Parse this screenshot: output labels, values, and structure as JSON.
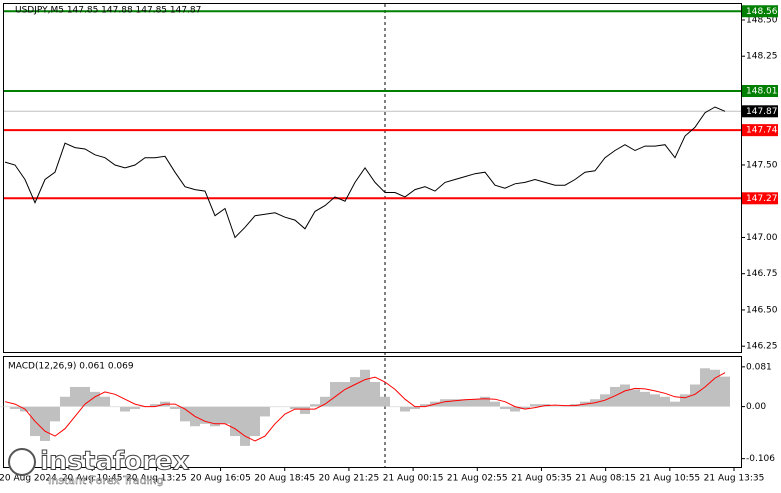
{
  "chart_data": [
    {
      "type": "line",
      "title": "USDJPY,M5  147.85 147.88 147.85 147.87",
      "color": "#000000",
      "values": [
        147.52,
        147.5,
        147.4,
        147.24,
        147.4,
        147.45,
        147.65,
        147.62,
        147.61,
        147.57,
        147.55,
        147.5,
        147.48,
        147.5,
        147.55,
        147.55,
        147.56,
        147.45,
        147.35,
        147.33,
        147.32,
        147.15,
        147.2,
        147.0,
        147.07,
        147.15,
        147.16,
        147.17,
        147.14,
        147.12,
        147.06,
        147.18,
        147.22,
        147.28,
        147.25,
        147.38,
        147.48,
        147.38,
        147.31,
        147.31,
        147.28,
        147.33,
        147.35,
        147.32,
        147.38,
        147.4,
        147.42,
        147.44,
        147.45,
        147.36,
        147.34,
        147.37,
        147.38,
        147.4,
        147.38,
        147.36,
        147.36,
        147.4,
        147.45,
        147.46,
        147.55,
        147.6,
        147.64,
        147.6,
        147.63,
        147.63,
        147.64,
        147.55,
        147.7,
        147.76,
        147.86,
        147.9,
        147.87
      ],
      "ylim": [
        146.21,
        148.61
      ],
      "yticks": [
        {
          "value": 148.5,
          "label": "148.50"
        },
        148.25,
        {
          "value": 148.0,
          "label": "148.00"
        },
        147.75,
        {
          "value": 147.5,
          "label": "147.50"
        },
        147.25,
        {
          "value": 147.0,
          "label": "147.00"
        },
        146.75,
        {
          "value": 146.5,
          "label": "146.50"
        },
        146.25
      ],
      "levels": [
        {
          "value": 148.56,
          "color": "#008000"
        },
        {
          "value": 148.01,
          "color": "#008000"
        },
        {
          "value": 147.74,
          "color": "#ff0000"
        },
        {
          "value": 147.27,
          "color": "#ff0000"
        }
      ],
      "last_price": 147.87,
      "xtick_labels": [
        "20 Aug 2024",
        "20 Aug 10:45",
        "20 Aug 13:25",
        "20 Aug 16:05",
        "20 Aug 18:45",
        "20 Aug 21:25",
        "21 Aug 00:15",
        "21 Aug 02:55",
        "21 Aug 05:35",
        "21 Aug 08:15",
        "21 Aug 10:55",
        "21 Aug 13:35"
      ],
      "watermark": {
        "brand": "instaforex",
        "tagline": "Instant Forex Trading"
      }
    },
    {
      "type": "macd",
      "title": "MACD(12,26,9) 0.061 0.069",
      "hist_color": "#c0c0c0",
      "signal_color": "#ff0000",
      "histogram": [
        0.0,
        -0.005,
        -0.01,
        -0.06,
        -0.07,
        -0.03,
        0.02,
        0.04,
        0.04,
        0.03,
        0.02,
        0.0,
        -0.01,
        -0.005,
        0.0,
        0.005,
        0.01,
        -0.005,
        -0.03,
        -0.04,
        -0.035,
        -0.04,
        -0.035,
        -0.06,
        -0.08,
        -0.06,
        -0.02,
        0.0,
        0.0,
        -0.005,
        -0.015,
        0.005,
        0.02,
        0.05,
        0.05,
        0.06,
        0.075,
        0.05,
        0.02,
        0.0,
        -0.01,
        -0.005,
        0.005,
        0.01,
        0.015,
        0.015,
        0.015,
        0.015,
        0.02,
        0.01,
        -0.005,
        -0.01,
        -0.005,
        0.005,
        0.005,
        0.0,
        0.0,
        0.005,
        0.01,
        0.015,
        0.025,
        0.04,
        0.045,
        0.035,
        0.03,
        0.025,
        0.02,
        0.01,
        0.025,
        0.045,
        0.078,
        0.075,
        0.061
      ],
      "signal": [
        0.01,
        0.005,
        -0.005,
        -0.03,
        -0.05,
        -0.06,
        -0.045,
        -0.02,
        0.005,
        0.02,
        0.03,
        0.025,
        0.015,
        0.005,
        0.0,
        0.0,
        0.005,
        0.005,
        -0.005,
        -0.02,
        -0.03,
        -0.035,
        -0.035,
        -0.045,
        -0.06,
        -0.07,
        -0.06,
        -0.035,
        -0.015,
        -0.005,
        -0.005,
        -0.005,
        0.005,
        0.02,
        0.035,
        0.045,
        0.055,
        0.06,
        0.05,
        0.035,
        0.015,
        0.0,
        0.0,
        0.005,
        0.01,
        0.012,
        0.014,
        0.015,
        0.016,
        0.015,
        0.01,
        0.0,
        -0.005,
        -0.002,
        0.002,
        0.003,
        0.002,
        0.002,
        0.005,
        0.008,
        0.013,
        0.022,
        0.032,
        0.037,
        0.036,
        0.032,
        0.027,
        0.02,
        0.018,
        0.025,
        0.04,
        0.058,
        0.069
      ],
      "ylim": [
        -0.123,
        0.101
      ],
      "yticks": [
        0.081,
        {
          "value": 0,
          "label": "0.00"
        },
        -0.106
      ]
    }
  ]
}
